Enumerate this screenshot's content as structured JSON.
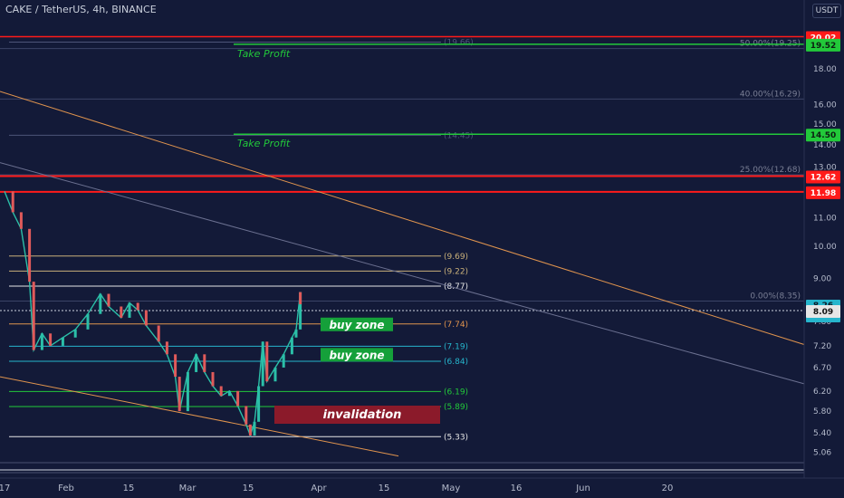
{
  "header": {
    "symbol": "CAKE / TetherUS, 4h, BINANCE",
    "currency": "USDT"
  },
  "colors": {
    "background": "#131a38",
    "red_line": "#ff1a1a",
    "green_line": "#22c93a",
    "orange_line": "#e0944e",
    "white_line": "#e6e6e6",
    "fib_line": "#4d5578",
    "candle_up": "#2bbfa8",
    "candle_down": "#e05a5a",
    "buy_zone_bg": "#15a03a",
    "invalidation_bg": "#8b1a2a"
  },
  "chart_data": {
    "type": "candlestick",
    "title": "CAKE / TetherUS, 4h, BINANCE",
    "y_axis": {
      "ticks": [
        5.06,
        5.4,
        5.8,
        6.2,
        6.7,
        7.2,
        7.8,
        9.0,
        10.0,
        11.0,
        13.0,
        14.0,
        15.0,
        16.0,
        18.0
      ],
      "scale": "log"
    },
    "x_axis": {
      "ticks": [
        "17",
        "Feb",
        "15",
        "Mar",
        "15",
        "Apr",
        "15",
        "May",
        "16",
        "Jun",
        "20"
      ]
    },
    "price_badges": [
      {
        "label": "20.02",
        "value": 20.02,
        "bg": "#ff1a1a",
        "fg": "#ffffff"
      },
      {
        "label": "19.52",
        "value": 19.52,
        "bg": "#22c93a",
        "fg": "#0d1f12"
      },
      {
        "label": "14.50",
        "value": 14.5,
        "bg": "#22c93a",
        "fg": "#0d1f12"
      },
      {
        "label": "12.62",
        "value": 12.62,
        "bg": "#ff1a1a",
        "fg": "#ffffff"
      },
      {
        "label": "11.98",
        "value": 11.98,
        "bg": "#ff1a1a",
        "fg": "#ffffff"
      },
      {
        "label": "8.26\n56:20",
        "value": 8.26,
        "bg": "#26b5cc",
        "fg": "#0b1a26"
      },
      {
        "label": "8.09",
        "value": 8.09,
        "bg": "#e6e6e6",
        "fg": "#111111"
      }
    ],
    "horizontal_levels": [
      {
        "label": "(19.66)",
        "value": 19.66,
        "color": "#4d5578"
      },
      {
        "label": "(14.45)",
        "value": 14.45,
        "color": "#4d5578"
      },
      {
        "label": "(9.69)",
        "value": 9.69,
        "color": "#c9b07a"
      },
      {
        "label": "(9.22)",
        "value": 9.22,
        "color": "#c9b07a"
      },
      {
        "label": "(8.77)",
        "value": 8.77,
        "color": "#e6e6e6"
      },
      {
        "label": "(7.74)",
        "value": 7.74,
        "color": "#e0944e"
      },
      {
        "label": "(7.19)",
        "value": 7.19,
        "color": "#26b5cc"
      },
      {
        "label": "(6.84)",
        "value": 6.84,
        "color": "#26b5cc"
      },
      {
        "label": "(6.19)",
        "value": 6.19,
        "color": "#22c93a"
      },
      {
        "label": "(5.89)",
        "value": 5.89,
        "color": "#22c93a"
      },
      {
        "label": "(5.33)",
        "value": 5.33,
        "color": "#e6e6e6"
      }
    ],
    "fib_levels": [
      {
        "label": "50.00%(19.25)",
        "value": 19.25
      },
      {
        "label": "40.00%(16.29)",
        "value": 16.29
      },
      {
        "label": "25.00%(12.68)",
        "value": 12.68
      },
      {
        "label": "0.00%(8.35)",
        "value": 8.35
      }
    ],
    "annotations": [
      {
        "text": "Take Profit",
        "value": 19.52
      },
      {
        "text": "Take Profit",
        "value": 14.5
      },
      {
        "text": "buy zone",
        "value": 7.74
      },
      {
        "text": "buy zone",
        "value": 7.0
      },
      {
        "text": "invalidation",
        "value": 5.75
      }
    ],
    "price_series": [
      {
        "date": "2021-01-17",
        "close": 12.0
      },
      {
        "date": "2021-01-19",
        "close": 11.2
      },
      {
        "date": "2021-01-21",
        "close": 10.6
      },
      {
        "date": "2021-01-23",
        "close": 8.9
      },
      {
        "date": "2021-01-24",
        "close": 7.1
      },
      {
        "date": "2021-01-26",
        "close": 7.5
      },
      {
        "date": "2021-01-28",
        "close": 7.2
      },
      {
        "date": "2021-01-31",
        "close": 7.4
      },
      {
        "date": "2021-02-03",
        "close": 7.6
      },
      {
        "date": "2021-02-06",
        "close": 8.0
      },
      {
        "date": "2021-02-09",
        "close": 8.55
      },
      {
        "date": "2021-02-11",
        "close": 8.2
      },
      {
        "date": "2021-02-14",
        "close": 7.9
      },
      {
        "date": "2021-02-16",
        "close": 8.3
      },
      {
        "date": "2021-02-18",
        "close": 8.1
      },
      {
        "date": "2021-02-20",
        "close": 7.7
      },
      {
        "date": "2021-02-23",
        "close": 7.3
      },
      {
        "date": "2021-02-25",
        "close": 7.0
      },
      {
        "date": "2021-02-27",
        "close": 6.5
      },
      {
        "date": "2021-02-28",
        "close": 5.8
      },
      {
        "date": "2021-03-02",
        "close": 6.6
      },
      {
        "date": "2021-03-04",
        "close": 7.0
      },
      {
        "date": "2021-03-06",
        "close": 6.6
      },
      {
        "date": "2021-03-08",
        "close": 6.3
      },
      {
        "date": "2021-03-10",
        "close": 6.1
      },
      {
        "date": "2021-03-12",
        "close": 6.2
      },
      {
        "date": "2021-03-14",
        "close": 5.9
      },
      {
        "date": "2021-03-16",
        "close": 5.55
      },
      {
        "date": "2021-03-17",
        "close": 5.35
      },
      {
        "date": "2021-03-18",
        "close": 5.6
      },
      {
        "date": "2021-03-19",
        "close": 6.3
      },
      {
        "date": "2021-03-20",
        "close": 7.3
      },
      {
        "date": "2021-03-21",
        "close": 6.4
      },
      {
        "date": "2021-03-23",
        "close": 6.7
      },
      {
        "date": "2021-03-25",
        "close": 7.0
      },
      {
        "date": "2021-03-27",
        "close": 7.4
      },
      {
        "date": "2021-03-28",
        "close": 7.6
      },
      {
        "date": "2021-03-29",
        "close": 8.6
      },
      {
        "date": "2021-03-29",
        "close": 8.26
      }
    ]
  }
}
